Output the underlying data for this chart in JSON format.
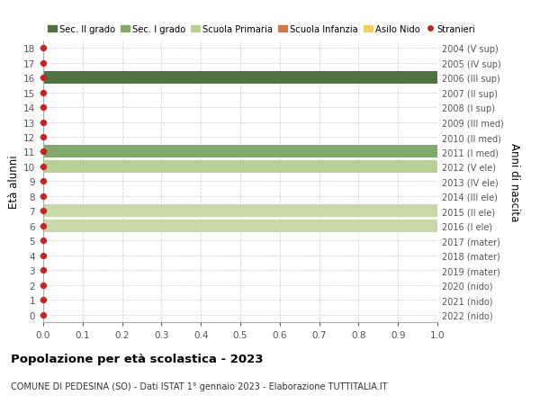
{
  "ages": [
    0,
    1,
    2,
    3,
    4,
    5,
    6,
    7,
    8,
    9,
    10,
    11,
    12,
    13,
    14,
    15,
    16,
    17,
    18
  ],
  "right_labels": [
    "2022 (nido)",
    "2021 (nido)",
    "2020 (nido)",
    "2019 (mater)",
    "2018 (mater)",
    "2017 (mater)",
    "2016 (I ele)",
    "2015 (II ele)",
    "2014 (III ele)",
    "2013 (IV ele)",
    "2012 (V ele)",
    "2011 (I med)",
    "2010 (II med)",
    "2009 (III med)",
    "2008 (I sup)",
    "2007 (II sup)",
    "2006 (III sup)",
    "2005 (IV sup)",
    "2004 (V sup)"
  ],
  "bars": [
    {
      "age": 16,
      "value": 1.0,
      "color": "#4e7340",
      "label": "Sec. II grado"
    },
    {
      "age": 11,
      "value": 1.0,
      "color": "#82a96a",
      "label": "Sec. I grado"
    },
    {
      "age": 10,
      "value": 1.0,
      "color": "#b8cf96",
      "label": "Scuola Primaria"
    },
    {
      "age": 7,
      "value": 1.0,
      "color": "#c8d9a8",
      "label": ""
    },
    {
      "age": 6,
      "value": 1.0,
      "color": "#c8d9a8",
      "label": ""
    }
  ],
  "dot_color": "#cc2222",
  "dot_size": 18,
  "legend_items": [
    {
      "label": "Sec. II grado",
      "color": "#4e7340",
      "type": "patch"
    },
    {
      "label": "Sec. I grado",
      "color": "#82a96a",
      "type": "patch"
    },
    {
      "label": "Scuola Primaria",
      "color": "#b8cf96",
      "type": "patch"
    },
    {
      "label": "Scuola Infanzia",
      "color": "#d4784a",
      "type": "patch"
    },
    {
      "label": "Asilo Nido",
      "color": "#f0d060",
      "type": "patch"
    },
    {
      "label": "Stranieri",
      "color": "#cc2222",
      "type": "dot"
    }
  ],
  "ylabel_left": "Età alunni",
  "ylabel_right": "Anni di nascita",
  "title": "Popolazione per età scolastica - 2023",
  "subtitle": "COMUNE DI PEDESINA (SO) - Dati ISTAT 1° gennaio 2023 - Elaborazione TUTTITALIA.IT",
  "xlim": [
    0,
    1.0
  ],
  "ylim": [
    -0.5,
    18.5
  ],
  "bg_color": "#ffffff",
  "grid_color": "#cccccc",
  "bar_height": 0.85
}
